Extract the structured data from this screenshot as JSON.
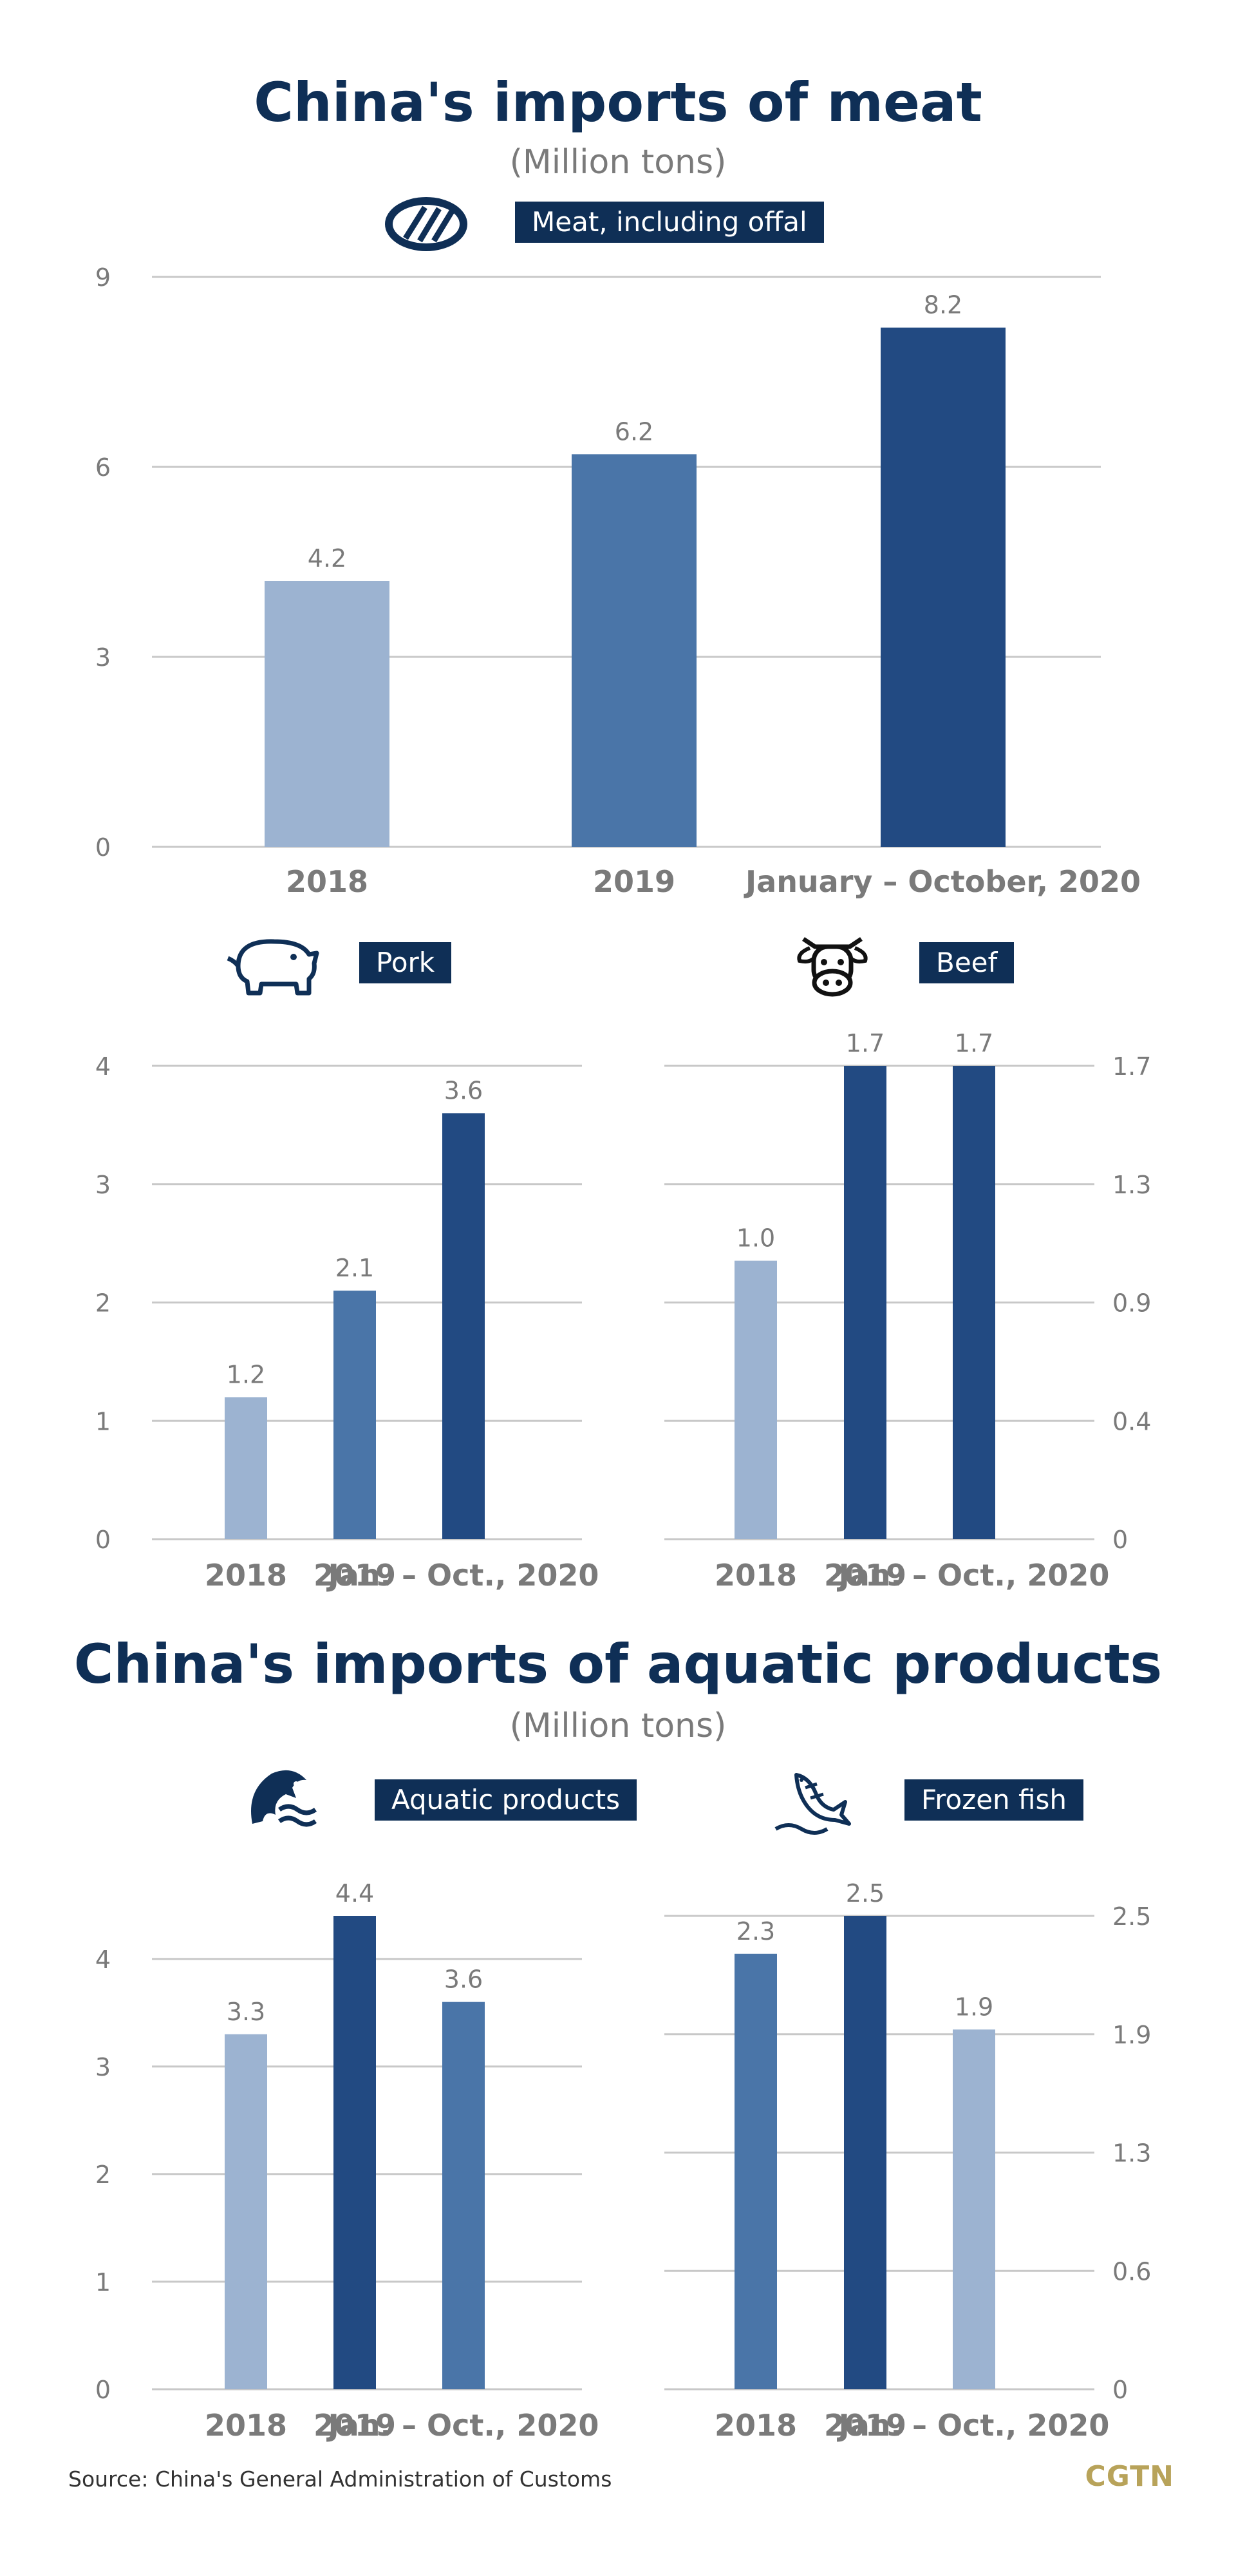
{
  "colors": {
    "light": "#9cb3d1",
    "mid": "#4a75a8",
    "dark": "#224a82",
    "grid": "#c8c8c8",
    "text": "#7a7a7a",
    "navy": "#0f2f56"
  },
  "meat_section": {
    "title": "China's imports of meat",
    "subtitle": "(Million tons)"
  },
  "aquatic_section": {
    "title": "China's imports of aquatic products",
    "subtitle": "(Million tons)"
  },
  "footer": {
    "source": "Source: China's General Administration of Customs",
    "brand": "CGTN"
  },
  "chart_data": [
    {
      "id": "meat",
      "type": "bar",
      "title": "Meat, including offal",
      "icon": "steak-icon",
      "categories": [
        "2018",
        "2019",
        "January – October, 2020"
      ],
      "values": [
        4.2,
        6.2,
        8.2
      ],
      "value_labels": [
        "4.2",
        "6.2",
        "8.2"
      ],
      "bar_colors": [
        "#9cb3d1",
        "#4a75a8",
        "#224a82"
      ],
      "ylim": [
        0,
        9
      ],
      "yticks": [
        "0",
        "3",
        "6",
        "9"
      ],
      "ytick_values": [
        0,
        3,
        6,
        9
      ],
      "axis_side": "left",
      "grid": true
    },
    {
      "id": "pork",
      "type": "bar",
      "title": "Pork",
      "icon": "pig-icon",
      "categories": [
        "2018",
        "2019",
        "Jan. – Oct., 2020"
      ],
      "values": [
        1.2,
        2.1,
        3.6
      ],
      "value_labels": [
        "1.2",
        "2.1",
        "3.6"
      ],
      "bar_colors": [
        "#9cb3d1",
        "#4a75a8",
        "#224a82"
      ],
      "ylim": [
        0,
        4
      ],
      "yticks": [
        "0",
        "1",
        "2",
        "3",
        "4"
      ],
      "ytick_values": [
        0,
        1,
        2,
        3,
        4
      ],
      "axis_side": "left",
      "grid": true
    },
    {
      "id": "beef",
      "type": "bar",
      "title": "Beef",
      "icon": "cow-icon",
      "categories": [
        "2018",
        "2019",
        "Jan. – Oct., 2020"
      ],
      "values": [
        1.0,
        1.7,
        1.7
      ],
      "value_labels": [
        "1.0",
        "1.7",
        "1.7"
      ],
      "bar_colors": [
        "#9cb3d1",
        "#224a82",
        "#224a82"
      ],
      "ylim": [
        0,
        1.7
      ],
      "yticks": [
        "0",
        "0.4",
        "0.9",
        "1.3",
        "1.7"
      ],
      "ytick_values": [
        0,
        0.425,
        0.85,
        1.275,
        1.7
      ],
      "axis_side": "right",
      "grid": true
    },
    {
      "id": "aquatic",
      "type": "bar",
      "title": "Aquatic products",
      "icon": "fish-wave-icon",
      "categories": [
        "2018",
        "2019",
        "Jan. – Oct., 2020"
      ],
      "values": [
        3.3,
        4.4,
        3.6
      ],
      "value_labels": [
        "3.3",
        "4.4",
        "3.6"
      ],
      "bar_colors": [
        "#9cb3d1",
        "#224a82",
        "#4a75a8"
      ],
      "ylim": [
        0,
        4.4
      ],
      "yticks": [
        "0",
        "1",
        "2",
        "3",
        "4"
      ],
      "ytick_values": [
        0,
        1,
        2,
        3,
        4
      ],
      "axis_side": "left",
      "grid": true
    },
    {
      "id": "frozen",
      "type": "bar",
      "title": "Frozen fish",
      "icon": "frozen-fish-icon",
      "categories": [
        "2018",
        "2019",
        "Jan. – Oct., 2020"
      ],
      "values": [
        2.3,
        2.5,
        1.9
      ],
      "value_labels": [
        "2.3",
        "2.5",
        "1.9"
      ],
      "bar_colors": [
        "#4a75a8",
        "#224a82",
        "#9cb3d1"
      ],
      "ylim": [
        0,
        2.5
      ],
      "yticks": [
        "0",
        "0.6",
        "1.3",
        "1.9",
        "2.5"
      ],
      "ytick_values": [
        0,
        0.625,
        1.25,
        1.875,
        2.5
      ],
      "axis_side": "right",
      "grid": true
    }
  ]
}
